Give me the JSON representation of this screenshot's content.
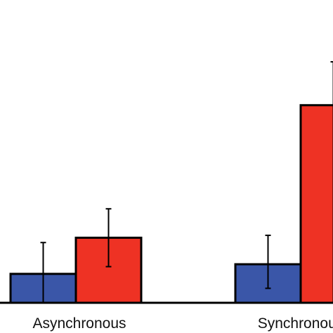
{
  "chart_data": {
    "type": "bar",
    "title": "",
    "xlabel": "",
    "ylabel": "",
    "ylim": [
      0,
      100
    ],
    "categories": [
      "Asynchronous",
      "Synchronous"
    ],
    "series": [
      {
        "color": "#3a56a8",
        "values": [
          12,
          16
        ],
        "error_low": [
          0,
          6
        ],
        "error_high": [
          25,
          28
        ]
      },
      {
        "color": "#ee3224",
        "values": [
          27,
          82
        ],
        "error_low": [
          15,
          0
        ],
        "error_high": [
          39,
          100
        ]
      }
    ]
  }
}
